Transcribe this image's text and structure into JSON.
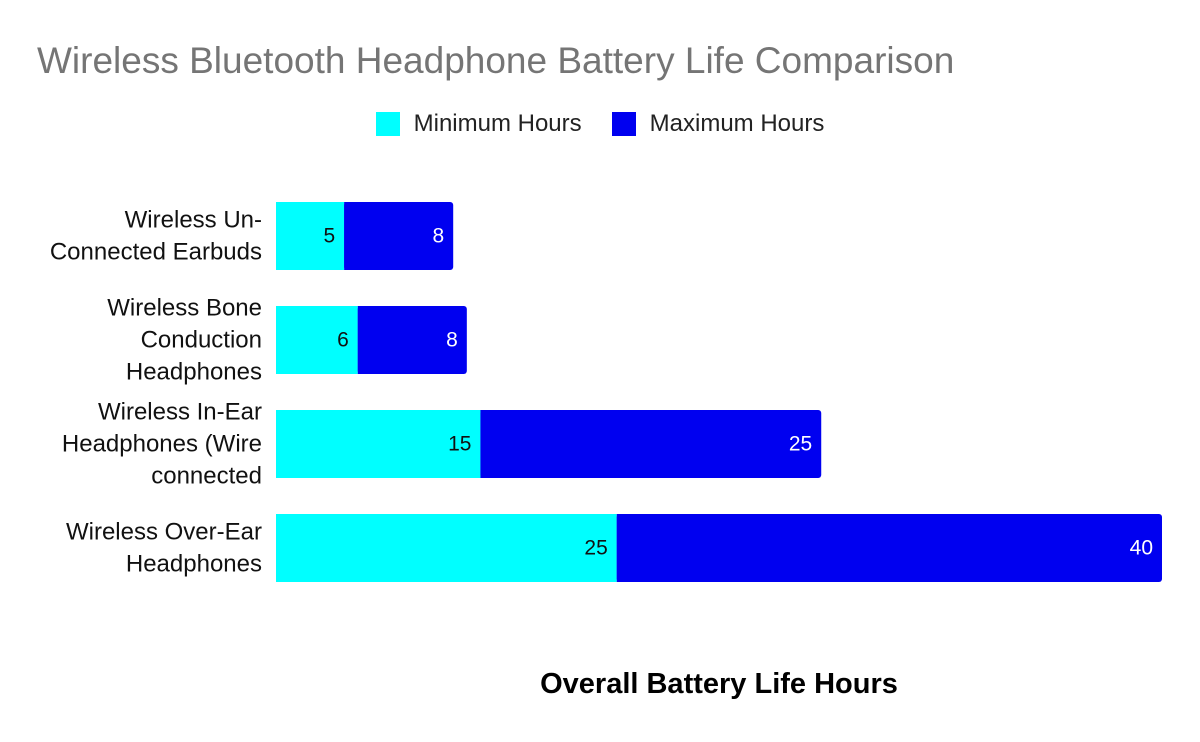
{
  "chart_data": {
    "type": "bar",
    "orientation": "horizontal",
    "stacked": true,
    "title": "Wireless Bluetooth Headphone Battery Life Comparison",
    "xlabel": "Overall Battery Life Hours",
    "ylabel": "",
    "categories": [
      [
        "Wireless Un-",
        "Connected Earbuds"
      ],
      [
        "Wireless Bone",
        "Conduction",
        "Headphones"
      ],
      [
        "Wireless In-Ear",
        "Headphones (Wire",
        "connected"
      ],
      [
        "Wireless Over-Ear",
        "Headphones"
      ]
    ],
    "series": [
      {
        "name": "Minimum Hours",
        "color": "#00FFFF",
        "label_color": "#111111",
        "values": [
          5,
          6,
          15,
          25
        ]
      },
      {
        "name": "Maximum Hours",
        "color": "#0000F0",
        "label_color": "#FFFFFF",
        "values": [
          8,
          8,
          25,
          40
        ]
      }
    ],
    "xlim": [
      0,
      65
    ],
    "grid": false,
    "legend_position": "top-center"
  }
}
